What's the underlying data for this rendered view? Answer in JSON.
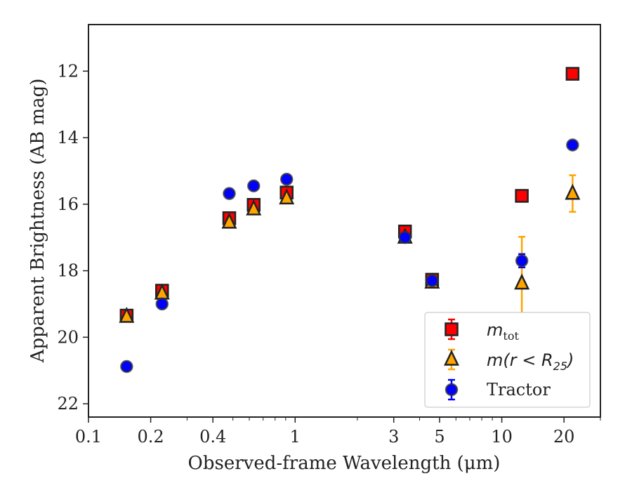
{
  "chart_data": {
    "type": "scatter",
    "xlabel": "Observed-frame Wavelength (μm)",
    "ylabel": "Apparent Brightness (AB mag)",
    "xscale": "log",
    "xlim": [
      0.1,
      30
    ],
    "ylim": [
      22.4,
      10.6
    ],
    "y_inverted": true,
    "x_major_ticks": [
      0.1,
      0.2,
      0.4,
      1,
      3,
      5,
      10,
      20
    ],
    "x_tick_labels": [
      "0.1",
      "0.2",
      "0.4",
      "1",
      "3",
      "5",
      "10",
      "20"
    ],
    "y_ticks": [
      12,
      14,
      16,
      18,
      20,
      22
    ],
    "y_tick_labels": [
      "12",
      "14",
      "16",
      "18",
      "20",
      "22"
    ],
    "grid": false,
    "legend_position": "lower-right",
    "series": [
      {
        "name": "m_tot",
        "legend_main": "m",
        "legend_sub": "tot",
        "marker": "square",
        "color": "#ff0000",
        "edge_color": "#222222",
        "points": [
          {
            "x": 0.153,
            "y": 19.35,
            "err": 0.05
          },
          {
            "x": 0.227,
            "y": 18.6,
            "err": 0.05
          },
          {
            "x": 0.48,
            "y": 16.42,
            "err": 0.05
          },
          {
            "x": 0.63,
            "y": 16.02,
            "err": 0.05
          },
          {
            "x": 0.91,
            "y": 15.65,
            "err": 0.05
          },
          {
            "x": 3.4,
            "y": 16.82,
            "err": 0.05
          },
          {
            "x": 4.6,
            "y": 18.27,
            "err": 0.05
          },
          {
            "x": 12.5,
            "y": 15.75,
            "err": 0.05
          },
          {
            "x": 22.0,
            "y": 12.08,
            "err": 0.05
          }
        ]
      },
      {
        "name": "m(r < R_25)",
        "legend_main": "m(r < R",
        "legend_sub": "25",
        "legend_tail": ")",
        "marker": "triangle",
        "color": "#ffa500",
        "edge_color": "#222222",
        "points": [
          {
            "x": 0.153,
            "y": 19.38,
            "err": 0.05
          },
          {
            "x": 0.227,
            "y": 18.68,
            "err": 0.05
          },
          {
            "x": 0.48,
            "y": 16.55,
            "err": 0.05
          },
          {
            "x": 0.63,
            "y": 16.15,
            "err": 0.05
          },
          {
            "x": 0.91,
            "y": 15.82,
            "err": 0.05
          },
          {
            "x": 3.4,
            "y": 17.0,
            "err": 0.05
          },
          {
            "x": 4.6,
            "y": 18.35,
            "err": 0.05
          },
          {
            "x": 12.5,
            "y": 18.38,
            "err": 1.4
          },
          {
            "x": 22.0,
            "y": 15.68,
            "err": 0.55
          }
        ]
      },
      {
        "name": "Tractor",
        "marker": "circle",
        "color": "#0000ff",
        "edge_color": "#333333",
        "points": [
          {
            "x": 0.153,
            "y": 20.88,
            "err": 0.05
          },
          {
            "x": 0.227,
            "y": 19.0,
            "err": 0.05
          },
          {
            "x": 0.48,
            "y": 15.68,
            "err": 0.05
          },
          {
            "x": 0.63,
            "y": 15.45,
            "err": 0.05
          },
          {
            "x": 0.91,
            "y": 15.25,
            "err": 0.05
          },
          {
            "x": 3.4,
            "y": 17.0,
            "err": 0.05
          },
          {
            "x": 4.6,
            "y": 18.3,
            "err": 0.05
          },
          {
            "x": 12.5,
            "y": 17.7,
            "err": 0.2
          },
          {
            "x": 22.0,
            "y": 14.22,
            "err": 0.05
          }
        ]
      }
    ]
  }
}
